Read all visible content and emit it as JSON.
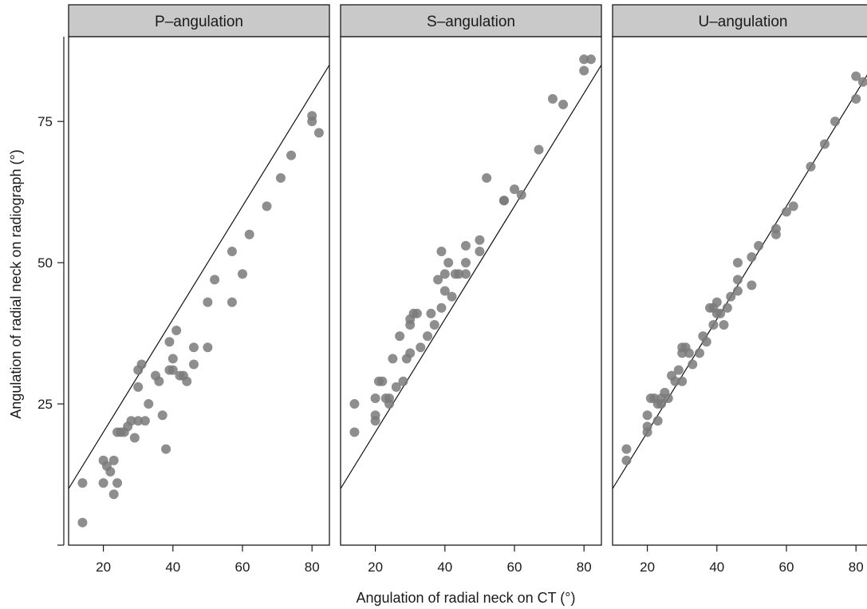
{
  "chart_data": {
    "type": "scatter",
    "xlabel": "Angulation of radial neck on CT (°)",
    "ylabel": "Angulation of radial neck on radiograph (°)",
    "xlim": [
      10,
      85
    ],
    "ylim": [
      0,
      90
    ],
    "x_ticks": [
      20,
      40,
      60,
      80
    ],
    "y_ticks": [
      25,
      50,
      75
    ],
    "grid": false,
    "legend": "none",
    "point_color": "#7a7a7a",
    "reference_line": "identity (y = x)",
    "panels": [
      {
        "title": "P–angulation",
        "points": [
          [
            14,
            4
          ],
          [
            14,
            11
          ],
          [
            20,
            15
          ],
          [
            20,
            11
          ],
          [
            21,
            14
          ],
          [
            22,
            13
          ],
          [
            23,
            15
          ],
          [
            23,
            9
          ],
          [
            24,
            11
          ],
          [
            24,
            20
          ],
          [
            25,
            20
          ],
          [
            26,
            20
          ],
          [
            27,
            21
          ],
          [
            28,
            22
          ],
          [
            29,
            19
          ],
          [
            30,
            22
          ],
          [
            30,
            28
          ],
          [
            30,
            31
          ],
          [
            31,
            32
          ],
          [
            32,
            22
          ],
          [
            33,
            25
          ],
          [
            35,
            30
          ],
          [
            36,
            29
          ],
          [
            37,
            23
          ],
          [
            38,
            17
          ],
          [
            39,
            31
          ],
          [
            39,
            36
          ],
          [
            40,
            31
          ],
          [
            40,
            33
          ],
          [
            41,
            38
          ],
          [
            42,
            30
          ],
          [
            43,
            30
          ],
          [
            44,
            29
          ],
          [
            46,
            35
          ],
          [
            46,
            32
          ],
          [
            50,
            43
          ],
          [
            50,
            35
          ],
          [
            52,
            47
          ],
          [
            57,
            52
          ],
          [
            57,
            43
          ],
          [
            60,
            48
          ],
          [
            62,
            55
          ],
          [
            67,
            60
          ],
          [
            71,
            65
          ],
          [
            74,
            69
          ],
          [
            80,
            76
          ],
          [
            80,
            75
          ],
          [
            82,
            73
          ]
        ]
      },
      {
        "title": "S–angulation",
        "points": [
          [
            14,
            25
          ],
          [
            14,
            20
          ],
          [
            20,
            26
          ],
          [
            20,
            23
          ],
          [
            20,
            22
          ],
          [
            21,
            29
          ],
          [
            22,
            29
          ],
          [
            23,
            26
          ],
          [
            24,
            26
          ],
          [
            24,
            25
          ],
          [
            25,
            33
          ],
          [
            26,
            28
          ],
          [
            27,
            37
          ],
          [
            28,
            29
          ],
          [
            29,
            33
          ],
          [
            30,
            34
          ],
          [
            30,
            40
          ],
          [
            30,
            39
          ],
          [
            31,
            41
          ],
          [
            32,
            41
          ],
          [
            33,
            35
          ],
          [
            35,
            37
          ],
          [
            36,
            41
          ],
          [
            37,
            39
          ],
          [
            38,
            47
          ],
          [
            39,
            52
          ],
          [
            39,
            42
          ],
          [
            40,
            48
          ],
          [
            40,
            45
          ],
          [
            41,
            50
          ],
          [
            42,
            44
          ],
          [
            43,
            48
          ],
          [
            44,
            48
          ],
          [
            46,
            53
          ],
          [
            46,
            50
          ],
          [
            46,
            48
          ],
          [
            50,
            54
          ],
          [
            50,
            52
          ],
          [
            52,
            65
          ],
          [
            57,
            61
          ],
          [
            57,
            61
          ],
          [
            60,
            63
          ],
          [
            62,
            62
          ],
          [
            67,
            70
          ],
          [
            71,
            79
          ],
          [
            74,
            78
          ],
          [
            80,
            86
          ],
          [
            80,
            84
          ],
          [
            82,
            86
          ]
        ]
      },
      {
        "title": "U–angulation",
        "points": [
          [
            14,
            17
          ],
          [
            14,
            15
          ],
          [
            20,
            23
          ],
          [
            20,
            21
          ],
          [
            20,
            20
          ],
          [
            21,
            26
          ],
          [
            22,
            26
          ],
          [
            23,
            22
          ],
          [
            23,
            25
          ],
          [
            24,
            26
          ],
          [
            24,
            25
          ],
          [
            25,
            27
          ],
          [
            26,
            26
          ],
          [
            27,
            30
          ],
          [
            28,
            29
          ],
          [
            29,
            31
          ],
          [
            30,
            34
          ],
          [
            30,
            35
          ],
          [
            30,
            29
          ],
          [
            31,
            35
          ],
          [
            32,
            34
          ],
          [
            33,
            32
          ],
          [
            35,
            34
          ],
          [
            36,
            37
          ],
          [
            37,
            36
          ],
          [
            38,
            42
          ],
          [
            39,
            39
          ],
          [
            39,
            42
          ],
          [
            40,
            43
          ],
          [
            40,
            41
          ],
          [
            41,
            41
          ],
          [
            42,
            39
          ],
          [
            43,
            42
          ],
          [
            44,
            44
          ],
          [
            46,
            50
          ],
          [
            46,
            47
          ],
          [
            46,
            45
          ],
          [
            50,
            51
          ],
          [
            50,
            46
          ],
          [
            52,
            53
          ],
          [
            57,
            56
          ],
          [
            57,
            55
          ],
          [
            60,
            59
          ],
          [
            62,
            60
          ],
          [
            67,
            67
          ],
          [
            71,
            71
          ],
          [
            74,
            75
          ],
          [
            80,
            83
          ],
          [
            80,
            79
          ],
          [
            82,
            82
          ]
        ]
      }
    ]
  }
}
